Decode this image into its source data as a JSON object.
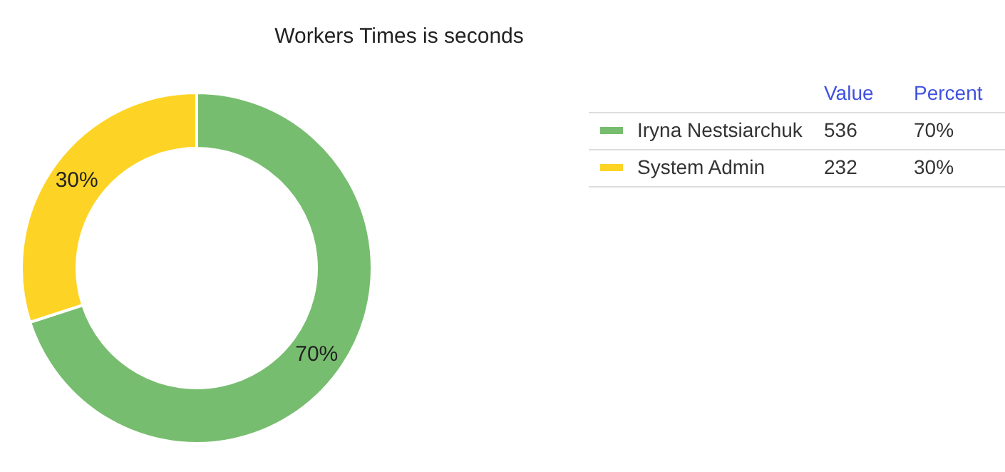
{
  "chart_data": {
    "type": "donut",
    "title": "Workers Times is seconds",
    "categories": [
      "Iryna Nestsiarchuk",
      "System Admin"
    ],
    "values": [
      70,
      30
    ],
    "colors": [
      "#77bd6f",
      "#fdd425"
    ],
    "value_labels": [
      "70%",
      "30%"
    ],
    "annotations": [
      "Value",
      "Percent",
      "536",
      "232"
    ],
    "legend": "right"
  }
}
